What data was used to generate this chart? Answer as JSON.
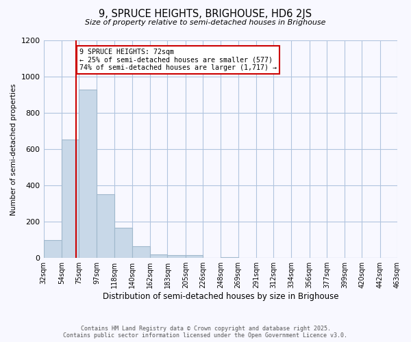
{
  "title": "9, SPRUCE HEIGHTS, BRIGHOUSE, HD6 2JS",
  "subtitle": "Size of property relative to semi-detached houses in Brighouse",
  "xlabel": "Distribution of semi-detached houses by size in Brighouse",
  "ylabel": "Number of semi-detached properties",
  "bar_color": "#c8d8e8",
  "bar_edgecolor": "#a0b8cc",
  "bin_edges": [
    32,
    54,
    75,
    97,
    118,
    140,
    162,
    183,
    205,
    226,
    248,
    269,
    291,
    312,
    334,
    356,
    377,
    399,
    420,
    442,
    463
  ],
  "bin_labels": [
    "32sqm",
    "54sqm",
    "75sqm",
    "97sqm",
    "118sqm",
    "140sqm",
    "162sqm",
    "183sqm",
    "205sqm",
    "226sqm",
    "248sqm",
    "269sqm",
    "291sqm",
    "312sqm",
    "334sqm",
    "356sqm",
    "377sqm",
    "399sqm",
    "420sqm",
    "442sqm",
    "463sqm"
  ],
  "counts": [
    100,
    655,
    930,
    350,
    165,
    65,
    20,
    15,
    15,
    0,
    5,
    0,
    0,
    0,
    0,
    0,
    0,
    0,
    0,
    0
  ],
  "property_size": 72,
  "property_label": "9 SPRUCE HEIGHTS: 72sqm",
  "smaller_pct": 25,
  "smaller_count": 577,
  "larger_pct": 74,
  "larger_count": 1717,
  "vline_color": "#cc0000",
  "annotation_box_color": "#cc0000",
  "ylim": [
    0,
    1200
  ],
  "yticks": [
    0,
    200,
    400,
    600,
    800,
    1000,
    1200
  ],
  "grid_color": "#b0c4de",
  "background_color": "#f8f8ff",
  "footer_line1": "Contains HM Land Registry data © Crown copyright and database right 2025.",
  "footer_line2": "Contains public sector information licensed under the Open Government Licence v3.0."
}
